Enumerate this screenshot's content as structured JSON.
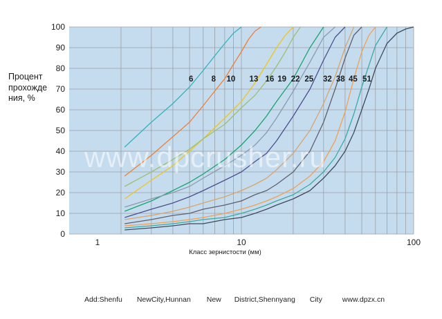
{
  "chart_data": {
    "type": "line",
    "title": "",
    "ylabel": "Процент прохождения, %",
    "ylabel_lines": [
      "Процент",
      "прохожде",
      "ния, %"
    ],
    "xlabel": "Класс зернистости (мм)",
    "xscale": "log",
    "xlim": [
      1,
      100
    ],
    "ylim": [
      0,
      100
    ],
    "x_ticks": [
      1,
      10,
      100
    ],
    "x_tick_labels": [
      "1",
      "10",
      "100"
    ],
    "y_ticks": [
      0,
      10,
      20,
      30,
      40,
      50,
      60,
      70,
      80,
      90,
      100
    ],
    "y_tick_labels": [
      "0",
      "10",
      "20",
      "30",
      "40",
      "50",
      "60",
      "70",
      "80",
      "90",
      "100"
    ],
    "grid": true,
    "background_color": "#c5dcee",
    "series": [
      {
        "name": "6",
        "color": "#2fb3b8",
        "x": [
          2.1,
          3,
          4,
          5,
          6,
          7,
          8,
          9,
          10
        ],
        "y": [
          42,
          54,
          63,
          71,
          79,
          86,
          92,
          97,
          100
        ]
      },
      {
        "name": "8",
        "color": "#ee7e34",
        "x": [
          2.1,
          3,
          4,
          5,
          6,
          7,
          8,
          9,
          10,
          11,
          12,
          13
        ],
        "y": [
          28,
          38,
          47,
          54,
          62,
          69,
          75,
          82,
          88,
          94,
          98,
          100
        ]
      },
      {
        "name": "10",
        "color": "#f0c419",
        "x": [
          2.1,
          3,
          4,
          5,
          6,
          8,
          10,
          12,
          14,
          16,
          18,
          20
        ],
        "y": [
          17,
          26,
          33,
          40,
          46,
          56,
          64,
          73,
          82,
          90,
          96,
          100
        ]
      },
      {
        "name": "13",
        "color": "#9bbf73",
        "x": [
          2.1,
          3,
          4,
          5,
          6,
          8,
          10,
          12,
          14,
          16,
          18,
          20,
          22
        ],
        "y": [
          23,
          30,
          36,
          41,
          46,
          53,
          61,
          67,
          74,
          81,
          88,
          95,
          100
        ]
      },
      {
        "name": "16",
        "color": "#17a36b",
        "x": [
          2.1,
          3,
          4,
          5,
          6,
          8,
          10,
          12,
          14,
          16,
          20,
          25,
          30
        ],
        "y": [
          11,
          16,
          21,
          25,
          29,
          36,
          43,
          50,
          57,
          64,
          75,
          90,
          100
        ]
      },
      {
        "name": "19",
        "color": "#8a9ab0",
        "x": [
          2.1,
          3,
          4,
          5,
          6,
          8,
          10,
          12,
          14,
          16,
          20,
          25,
          30,
          35
        ],
        "y": [
          13,
          17,
          20,
          23,
          27,
          33,
          38,
          43,
          49,
          56,
          69,
          83,
          95,
          100
        ]
      },
      {
        "name": "22",
        "color": "#4a4e8e",
        "x": [
          2.1,
          3,
          4,
          5,
          6,
          8,
          10,
          12,
          14,
          16,
          20,
          25,
          30,
          35,
          40
        ],
        "y": [
          8,
          12,
          15,
          18,
          21,
          26,
          30,
          35,
          39,
          45,
          57,
          70,
          84,
          95,
          100
        ]
      },
      {
        "name": "25",
        "color": "#d9a36b",
        "x": [
          2.1,
          3,
          4,
          5,
          6,
          8,
          10,
          12,
          14,
          16,
          20,
          25,
          30,
          35,
          40,
          45
        ],
        "y": [
          7,
          9,
          11,
          13,
          15,
          18,
          21,
          24,
          27,
          31,
          39,
          50,
          63,
          76,
          90,
          100
        ]
      },
      {
        "name": "32",
        "color": "#5e5e6e",
        "x": [
          2.1,
          3,
          4,
          5,
          6,
          8,
          10,
          12,
          14,
          16,
          20,
          25,
          30,
          35,
          40,
          45,
          50
        ],
        "y": [
          5,
          7,
          9,
          10,
          12,
          14,
          16,
          19,
          21,
          24,
          30,
          40,
          54,
          70,
          85,
          96,
          100
        ]
      },
      {
        "name": "38",
        "color": "#f0a050",
        "x": [
          2.1,
          3,
          4,
          5,
          6,
          8,
          10,
          12,
          14,
          16,
          20,
          25,
          30,
          35,
          40,
          45,
          50,
          55,
          60
        ],
        "y": [
          4,
          5,
          6,
          7,
          8,
          10,
          12,
          14,
          16,
          18,
          22,
          28,
          35,
          45,
          59,
          75,
          88,
          96,
          100
        ]
      },
      {
        "name": "45",
        "color": "#3aa9a3",
        "x": [
          2.1,
          3,
          4,
          5,
          6,
          8,
          10,
          12,
          14,
          16,
          20,
          25,
          30,
          35,
          40,
          45,
          50,
          60,
          70
        ],
        "y": [
          3,
          4,
          5,
          6,
          7,
          8,
          10,
          12,
          14,
          16,
          19,
          24,
          30,
          37,
          46,
          58,
          71,
          91,
          100
        ]
      },
      {
        "name": "51",
        "color": "#3c4a5c",
        "x": [
          2.1,
          3,
          4,
          5,
          6,
          8,
          10,
          12,
          14,
          16,
          20,
          25,
          30,
          35,
          40,
          45,
          50,
          55,
          60,
          70,
          80,
          90,
          100
        ],
        "y": [
          2,
          3,
          4,
          5,
          5,
          7,
          8,
          10,
          12,
          14,
          17,
          21,
          27,
          33,
          40,
          49,
          60,
          70,
          80,
          92,
          97,
          99,
          100
        ]
      }
    ],
    "curve_labels": [
      {
        "text": "6",
        "x": 5.1,
        "y": 75
      },
      {
        "text": "8",
        "x": 6.9,
        "y": 75
      },
      {
        "text": "10",
        "x": 8.7,
        "y": 75
      },
      {
        "text": "13",
        "x": 11.8,
        "y": 75
      },
      {
        "text": "16",
        "x": 14.6,
        "y": 75
      },
      {
        "text": "19",
        "x": 17.2,
        "y": 75
      },
      {
        "text": "22",
        "x": 20.6,
        "y": 75
      },
      {
        "text": "25",
        "x": 24.7,
        "y": 75
      },
      {
        "text": "32",
        "x": 31.6,
        "y": 75
      },
      {
        "text": "38",
        "x": 37.6,
        "y": 75
      },
      {
        "text": "45",
        "x": 44.5,
        "y": 75
      },
      {
        "text": "51",
        "x": 53.5,
        "y": 75
      }
    ]
  },
  "watermark": "www.dpcrusher.ru",
  "footer": {
    "items": [
      "Add:Shenfu",
      "NewCity,Hunnan",
      "New",
      "District,Shennyang",
      "City",
      "www.dpzx.cn"
    ]
  }
}
